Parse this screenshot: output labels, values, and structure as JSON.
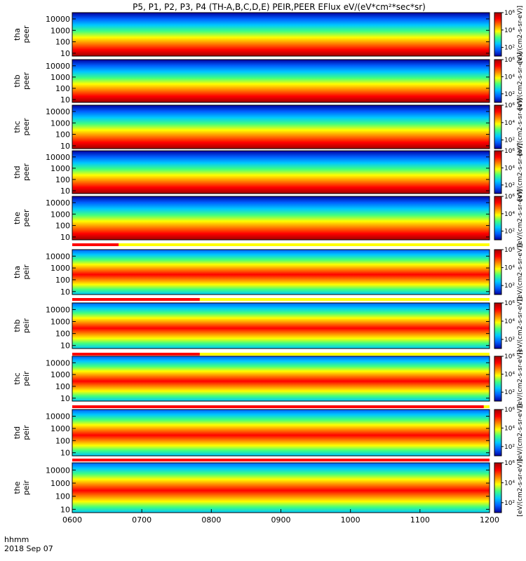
{
  "chart_data": {
    "type": "heatmap",
    "title": "P5, P1, P2, P3, P4 (TH-A,B,C,D,E) PEIR,PEER EFlux eV/(eV*cm²*sec*sr)",
    "xlabel": "hhmm",
    "date_label": "2018 Sep 07",
    "x_ticks": [
      "0600",
      "0700",
      "0800",
      "0900",
      "1000",
      "1100",
      "1200"
    ],
    "x_range": [
      "06:00",
      "12:00"
    ],
    "y_scale": "log",
    "y_ticks": [
      "10",
      "100",
      "1000",
      "10000"
    ],
    "colorbar": {
      "scale": "log",
      "range": [
        10,
        1000000
      ],
      "ticks": [
        "10²",
        "10⁴",
        "10⁶"
      ],
      "unit": "[eV/(cm2-s-sr-eV)]",
      "colormap": [
        "#0000a0",
        "#0060ff",
        "#00c8ff",
        "#40ff80",
        "#ffff00",
        "#ff8000",
        "#ff0000",
        "#a00000"
      ]
    },
    "panels": [
      {
        "probe": "tha",
        "species": "peer",
        "ylabel": "tha\npeer"
      },
      {
        "probe": "thb",
        "species": "peer",
        "ylabel": "thb\npeer"
      },
      {
        "probe": "thc",
        "species": "peer",
        "ylabel": "thc\npeer"
      },
      {
        "probe": "thd",
        "species": "peer",
        "ylabel": "thd\npeer"
      },
      {
        "probe": "the",
        "species": "peer",
        "ylabel": "the\npeer"
      },
      {
        "probe": "tha",
        "species": "peir",
        "ylabel": "tha\npeir"
      },
      {
        "probe": "thb",
        "species": "peir",
        "ylabel": "thb\npeir"
      },
      {
        "probe": "thc",
        "species": "peir",
        "ylabel": "thc\npeir"
      },
      {
        "probe": "thd",
        "species": "peir",
        "ylabel": "thd\npeir"
      },
      {
        "probe": "the",
        "species": "peir",
        "ylabel": "the\npeir"
      }
    ],
    "mode_bars": [
      {
        "after_panel": 4,
        "red_until": "06:40"
      },
      {
        "after_panel": 5,
        "red_until": "07:50"
      },
      {
        "after_panel": 6,
        "red_until": "07:50"
      },
      {
        "after_panel": 7,
        "red_until": "11:55"
      },
      {
        "after_panel": 8,
        "red_until": "12:00"
      }
    ]
  }
}
